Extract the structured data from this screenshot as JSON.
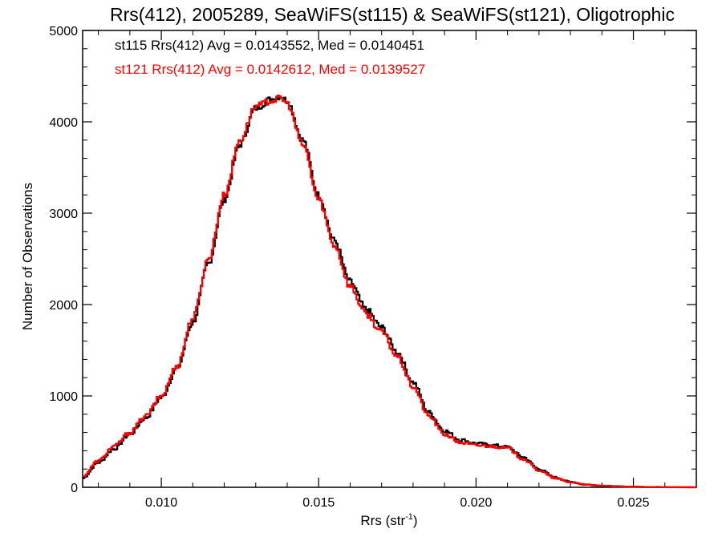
{
  "chart_data": {
    "type": "line",
    "title": "Rrs(412), 2005289, SeaWiFS(st115) & SeaWiFS(st121), Oligotrophic",
    "xlabel": "Rrs (str",
    "xlabel_sup": "-1",
    "xlabel_end": ")",
    "ylabel": "Number of Observations",
    "xlim": [
      0.0075,
      0.027
    ],
    "ylim": [
      0,
      5000
    ],
    "x_ticks": [
      0.01,
      0.015,
      0.02,
      0.025
    ],
    "x_tick_labels": [
      "0.010",
      "0.015",
      "0.020",
      "0.025"
    ],
    "y_ticks": [
      0,
      1000,
      2000,
      3000,
      4000,
      5000
    ],
    "y_tick_labels": [
      "0",
      "1000",
      "2000",
      "3000",
      "4000",
      "5000"
    ],
    "grid": false,
    "legend_position": "top-left",
    "x": [
      0.0075,
      0.008,
      0.0085,
      0.009,
      0.0095,
      0.01,
      0.0105,
      0.011,
      0.0115,
      0.012,
      0.0125,
      0.013,
      0.0135,
      0.0138,
      0.014,
      0.0145,
      0.015,
      0.0155,
      0.016,
      0.0165,
      0.017,
      0.0175,
      0.018,
      0.0185,
      0.019,
      0.0195,
      0.02,
      0.0205,
      0.021,
      0.0215,
      0.022,
      0.0225,
      0.023,
      0.0235,
      0.024,
      0.0245,
      0.025,
      0.0255,
      0.026,
      0.0265,
      0.027
    ],
    "series": [
      {
        "name": "st115",
        "color": "#000000",
        "values": [
          100,
          270,
          420,
          580,
          760,
          980,
          1300,
          1800,
          2450,
          3150,
          3750,
          4150,
          4250,
          4280,
          4230,
          3800,
          3200,
          2700,
          2250,
          1950,
          1750,
          1480,
          1150,
          820,
          620,
          520,
          480,
          460,
          440,
          330,
          200,
          110,
          60,
          30,
          18,
          10,
          6,
          4,
          2,
          1,
          0
        ]
      },
      {
        "name": "st121",
        "color": "#ff0000",
        "values": [
          120,
          290,
          450,
          600,
          780,
          1000,
          1330,
          1850,
          2500,
          3200,
          3800,
          4170,
          4230,
          4260,
          4200,
          3750,
          3150,
          2650,
          2200,
          1900,
          1700,
          1430,
          1100,
          780,
          580,
          490,
          460,
          450,
          430,
          310,
          185,
          100,
          55,
          28,
          16,
          9,
          5,
          3,
          1,
          0,
          0
        ]
      }
    ],
    "legend": [
      {
        "text": "st115 Rrs(412) Avg = 0.0143552, Med = 0.0140451",
        "color": "#000000"
      },
      {
        "text": "st121 Rrs(412) Avg = 0.0142612, Med = 0.0139527",
        "color": "#ff0000"
      }
    ]
  }
}
